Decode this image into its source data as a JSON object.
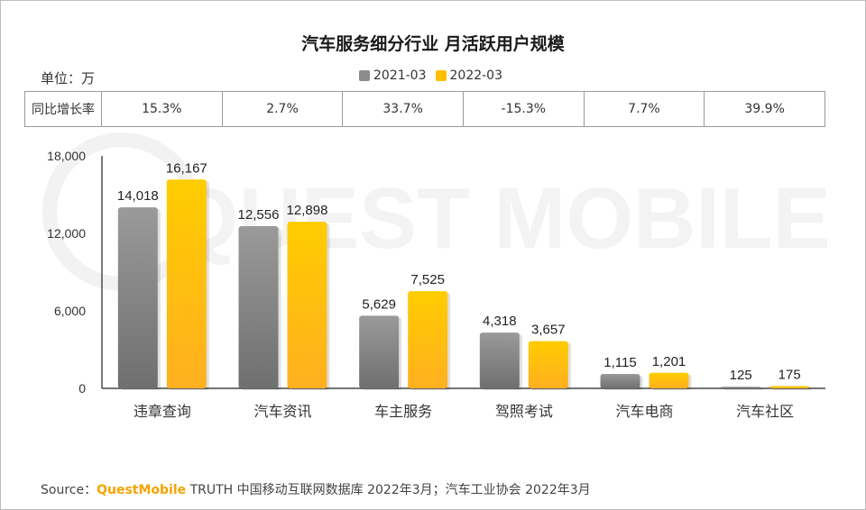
{
  "title": "汽车服务细分行业 月活跃用户规模",
  "unit_label": "单位：万",
  "watermark_text": "QUEST MOBILE",
  "legend": [
    {
      "name": "2021-03",
      "color": "#8c8c8c"
    },
    {
      "name": "2022-03",
      "color": "#ffc000"
    }
  ],
  "yoy": {
    "header": "同比增长率",
    "values": [
      "15.3%",
      "2.7%",
      "33.7%",
      "-15.3%",
      "7.7%",
      "39.9%"
    ]
  },
  "chart_data": {
    "type": "bar",
    "categories": [
      "违章查询",
      "汽车资讯",
      "车主服务",
      "驾照考试",
      "汽车电商",
      "汽车社区"
    ],
    "series": [
      {
        "name": "2021-03",
        "values": [
          14018,
          12556,
          5629,
          4318,
          1115,
          125
        ],
        "color": "#8c8c8c"
      },
      {
        "name": "2022-03",
        "values": [
          16167,
          12898,
          7525,
          3657,
          1201,
          175
        ],
        "color": "#ffc000"
      }
    ],
    "ylim": [
      0,
      18000
    ],
    "yticks": [
      0,
      6000,
      12000,
      18000
    ],
    "ytick_labels": [
      "0",
      "6,000",
      "12,000",
      "18,000"
    ],
    "data_labels": [
      [
        "14,018",
        "12,556",
        "5,629",
        "4,318",
        "1,115",
        "125"
      ],
      [
        "16,167",
        "12,898",
        "7,525",
        "3,657",
        "1,201",
        "175"
      ]
    ],
    "legend_position": "top"
  },
  "source": {
    "prefix": "Source：",
    "brand": "QuestMobile",
    "text": " TRUTH 中国移动互联网数据库 2022年3月；汽车工业协会 2022年3月"
  }
}
